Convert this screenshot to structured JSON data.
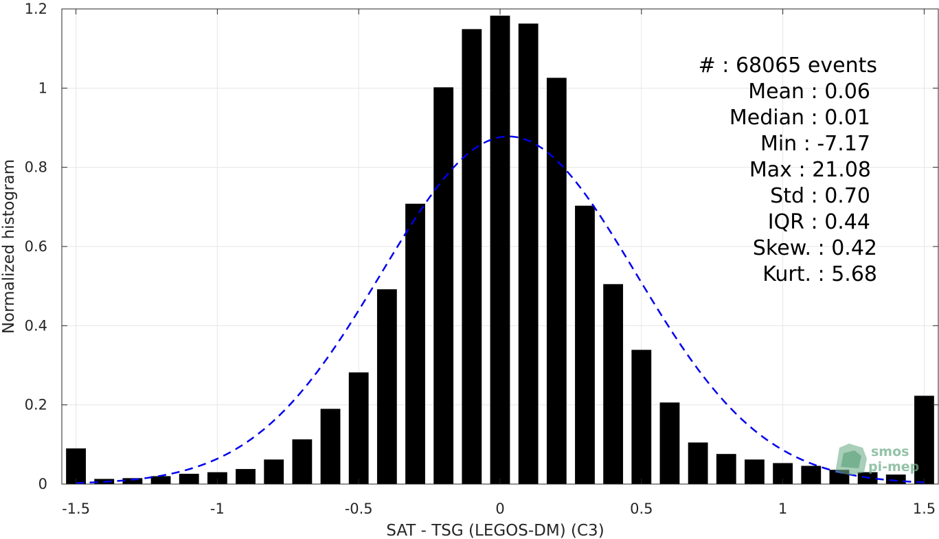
{
  "chart_data": {
    "type": "bar",
    "xlabel": "SAT - TSG (LEGOS-DM) (C3)",
    "ylabel": "Normalized histogram",
    "xlim": [
      -1.55,
      1.55
    ],
    "ylim": [
      0,
      1.2
    ],
    "xticks": [
      -1.5,
      -1,
      -0.5,
      0,
      0.5,
      1,
      1.5
    ],
    "xtick_labels": [
      "-1.5",
      "-1",
      "-0.5",
      "0",
      "0.5",
      "1",
      "1.5"
    ],
    "yticks": [
      0,
      0.2,
      0.4,
      0.6,
      0.8,
      1,
      1.2
    ],
    "ytick_labels": [
      "0",
      "0.2",
      "0.4",
      "0.6",
      "0.8",
      "1",
      "1.2"
    ],
    "grid": true,
    "bar_color": "#000000",
    "bar_width": 0.07,
    "bins": [
      {
        "x": -1.5,
        "y": 0.09
      },
      {
        "x": -1.4,
        "y": 0.013
      },
      {
        "x": -1.3,
        "y": 0.015
      },
      {
        "x": -1.2,
        "y": 0.02
      },
      {
        "x": -1.1,
        "y": 0.026
      },
      {
        "x": -1.0,
        "y": 0.03
      },
      {
        "x": -0.9,
        "y": 0.038
      },
      {
        "x": -0.8,
        "y": 0.062
      },
      {
        "x": -0.7,
        "y": 0.113
      },
      {
        "x": -0.6,
        "y": 0.19
      },
      {
        "x": -0.5,
        "y": 0.282
      },
      {
        "x": -0.4,
        "y": 0.492
      },
      {
        "x": -0.3,
        "y": 0.708
      },
      {
        "x": -0.2,
        "y": 1.002
      },
      {
        "x": -0.1,
        "y": 1.149
      },
      {
        "x": 0.0,
        "y": 1.183
      },
      {
        "x": 0.1,
        "y": 1.163
      },
      {
        "x": 0.2,
        "y": 1.026
      },
      {
        "x": 0.3,
        "y": 0.703
      },
      {
        "x": 0.4,
        "y": 0.505
      },
      {
        "x": 0.5,
        "y": 0.339
      },
      {
        "x": 0.6,
        "y": 0.206
      },
      {
        "x": 0.7,
        "y": 0.105
      },
      {
        "x": 0.8,
        "y": 0.076
      },
      {
        "x": 0.9,
        "y": 0.062
      },
      {
        "x": 1.0,
        "y": 0.053
      },
      {
        "x": 1.1,
        "y": 0.046
      },
      {
        "x": 1.2,
        "y": 0.036
      },
      {
        "x": 1.3,
        "y": 0.03
      },
      {
        "x": 1.4,
        "y": 0.024
      },
      {
        "x": 1.5,
        "y": 0.223
      }
    ],
    "fit_curve": {
      "style": "dashed",
      "color": "#0000ee",
      "mean": 0.03,
      "std": 0.45,
      "peak": 0.878,
      "x_range": [
        -1.5,
        1.5
      ]
    },
    "annotations": [
      "#  : 68065 events",
      "Mean : 0.06",
      "Median : 0.01",
      "Min : -7.17",
      "Max : 21.08",
      "Std : 0.70",
      "IQR : 0.44",
      "Skew. : 0.42",
      "Kurt. : 5.68"
    ],
    "logo": {
      "line1": "smos",
      "line2": "pi-mep",
      "color": "#6fae8a"
    }
  }
}
